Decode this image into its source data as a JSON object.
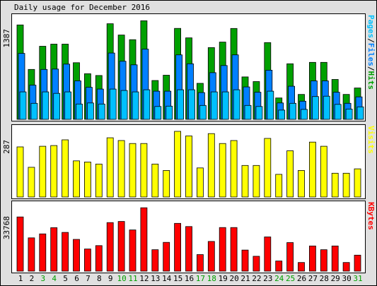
{
  "chart_data": {
    "type": "bar",
    "title": "Daily usage for December 2016",
    "days": [
      "1",
      "2",
      "3",
      "4",
      "5",
      "6",
      "7",
      "8",
      "9",
      "10",
      "11",
      "12",
      "13",
      "14",
      "15",
      "16",
      "17",
      "18",
      "19",
      "20",
      "21",
      "22",
      "23",
      "24",
      "25",
      "26",
      "27",
      "28",
      "29",
      "30",
      "31"
    ],
    "weekend_days": [
      "3",
      "4",
      "10",
      "11",
      "17",
      "18",
      "24",
      "25",
      "31"
    ],
    "colors": {
      "background": "#e0e0e0",
      "plot_background": "#ffffff",
      "hits": "#00a000",
      "files": "#0080ff",
      "pages": "#00c0ff",
      "visits": "#ffff00",
      "kbytes": "#ff0000",
      "weekday_label": "#000000",
      "weekend_label": "#00a000",
      "title": "#000000"
    },
    "panels": [
      {
        "name": "hits-files-pages",
        "max_label": "1387",
        "ymax": 1387,
        "legend": [
          {
            "text": "Pages",
            "color": "#00c0ff"
          },
          {
            "text": "/",
            "color": "#000000"
          },
          {
            "text": "Files",
            "color": "#0080ff"
          },
          {
            "text": "/",
            "color": "#000000"
          },
          {
            "text": "Hits",
            "color": "#00a000"
          }
        ],
        "series": [
          {
            "name": "Hits",
            "color": "#00a000",
            "values": [
              1325,
              700,
              1025,
              1055,
              1055,
              795,
              640,
              615,
              1341,
              1183,
              1118,
              1383,
              545,
              619,
              1276,
              1143,
              505,
              1007,
              1084,
              1275,
              595,
              530,
              1077,
              300,
              780,
              350,
              800,
              800,
              560,
              350,
              440
            ]
          },
          {
            "name": "Files",
            "color": "#0080ff",
            "values": [
              925,
              480,
              700,
              705,
              775,
              540,
              450,
              425,
              930,
              815,
              765,
              985,
              395,
              395,
              905,
              780,
              375,
              655,
              755,
              905,
              455,
              380,
              690,
              230,
              465,
              255,
              540,
              540,
              380,
              225,
              315
            ]
          },
          {
            "name": "Pages",
            "color": "#00c0ff",
            "values": [
              385,
              225,
              385,
              365,
              385,
              215,
              230,
              215,
              425,
              405,
              385,
              415,
              180,
              185,
              415,
              415,
              195,
              385,
              385,
              415,
              195,
              180,
              395,
              130,
              225,
              140,
              320,
              325,
              210,
              145,
              175
            ]
          }
        ]
      },
      {
        "name": "visits",
        "max_label": "287",
        "ymax": 287,
        "legend": [
          {
            "text": "Visits",
            "color": "#ffff00"
          }
        ],
        "series": [
          {
            "name": "Visits",
            "color": "#ffff00",
            "values": [
              219,
              130,
              222,
              225,
              250,
              158,
              153,
              144,
              259,
              247,
              234,
              234,
              144,
              116,
              287,
              267,
              127,
              277,
              234,
              247,
              138,
              138,
              256,
              99,
              202,
              116,
              240,
              222,
              104,
              104,
              123
            ]
          }
        ]
      },
      {
        "name": "kbytes",
        "max_label": "33768",
        "ymax": 33768,
        "legend": [
          {
            "text": "KBytes",
            "color": "#ff0000"
          }
        ],
        "series": [
          {
            "name": "KBytes",
            "color": "#ff0000",
            "values": [
              28800,
              17700,
              19800,
              23100,
              20600,
              16900,
              11800,
              13600,
              25800,
              26400,
              21900,
              33700,
              11400,
              15300,
              25400,
              23700,
              8800,
              15800,
              23200,
              23200,
              11200,
              7900,
              18200,
              5400,
              15200,
              4600,
              13400,
              11400,
              13400,
              4600,
              8500
            ]
          }
        ]
      }
    ]
  }
}
